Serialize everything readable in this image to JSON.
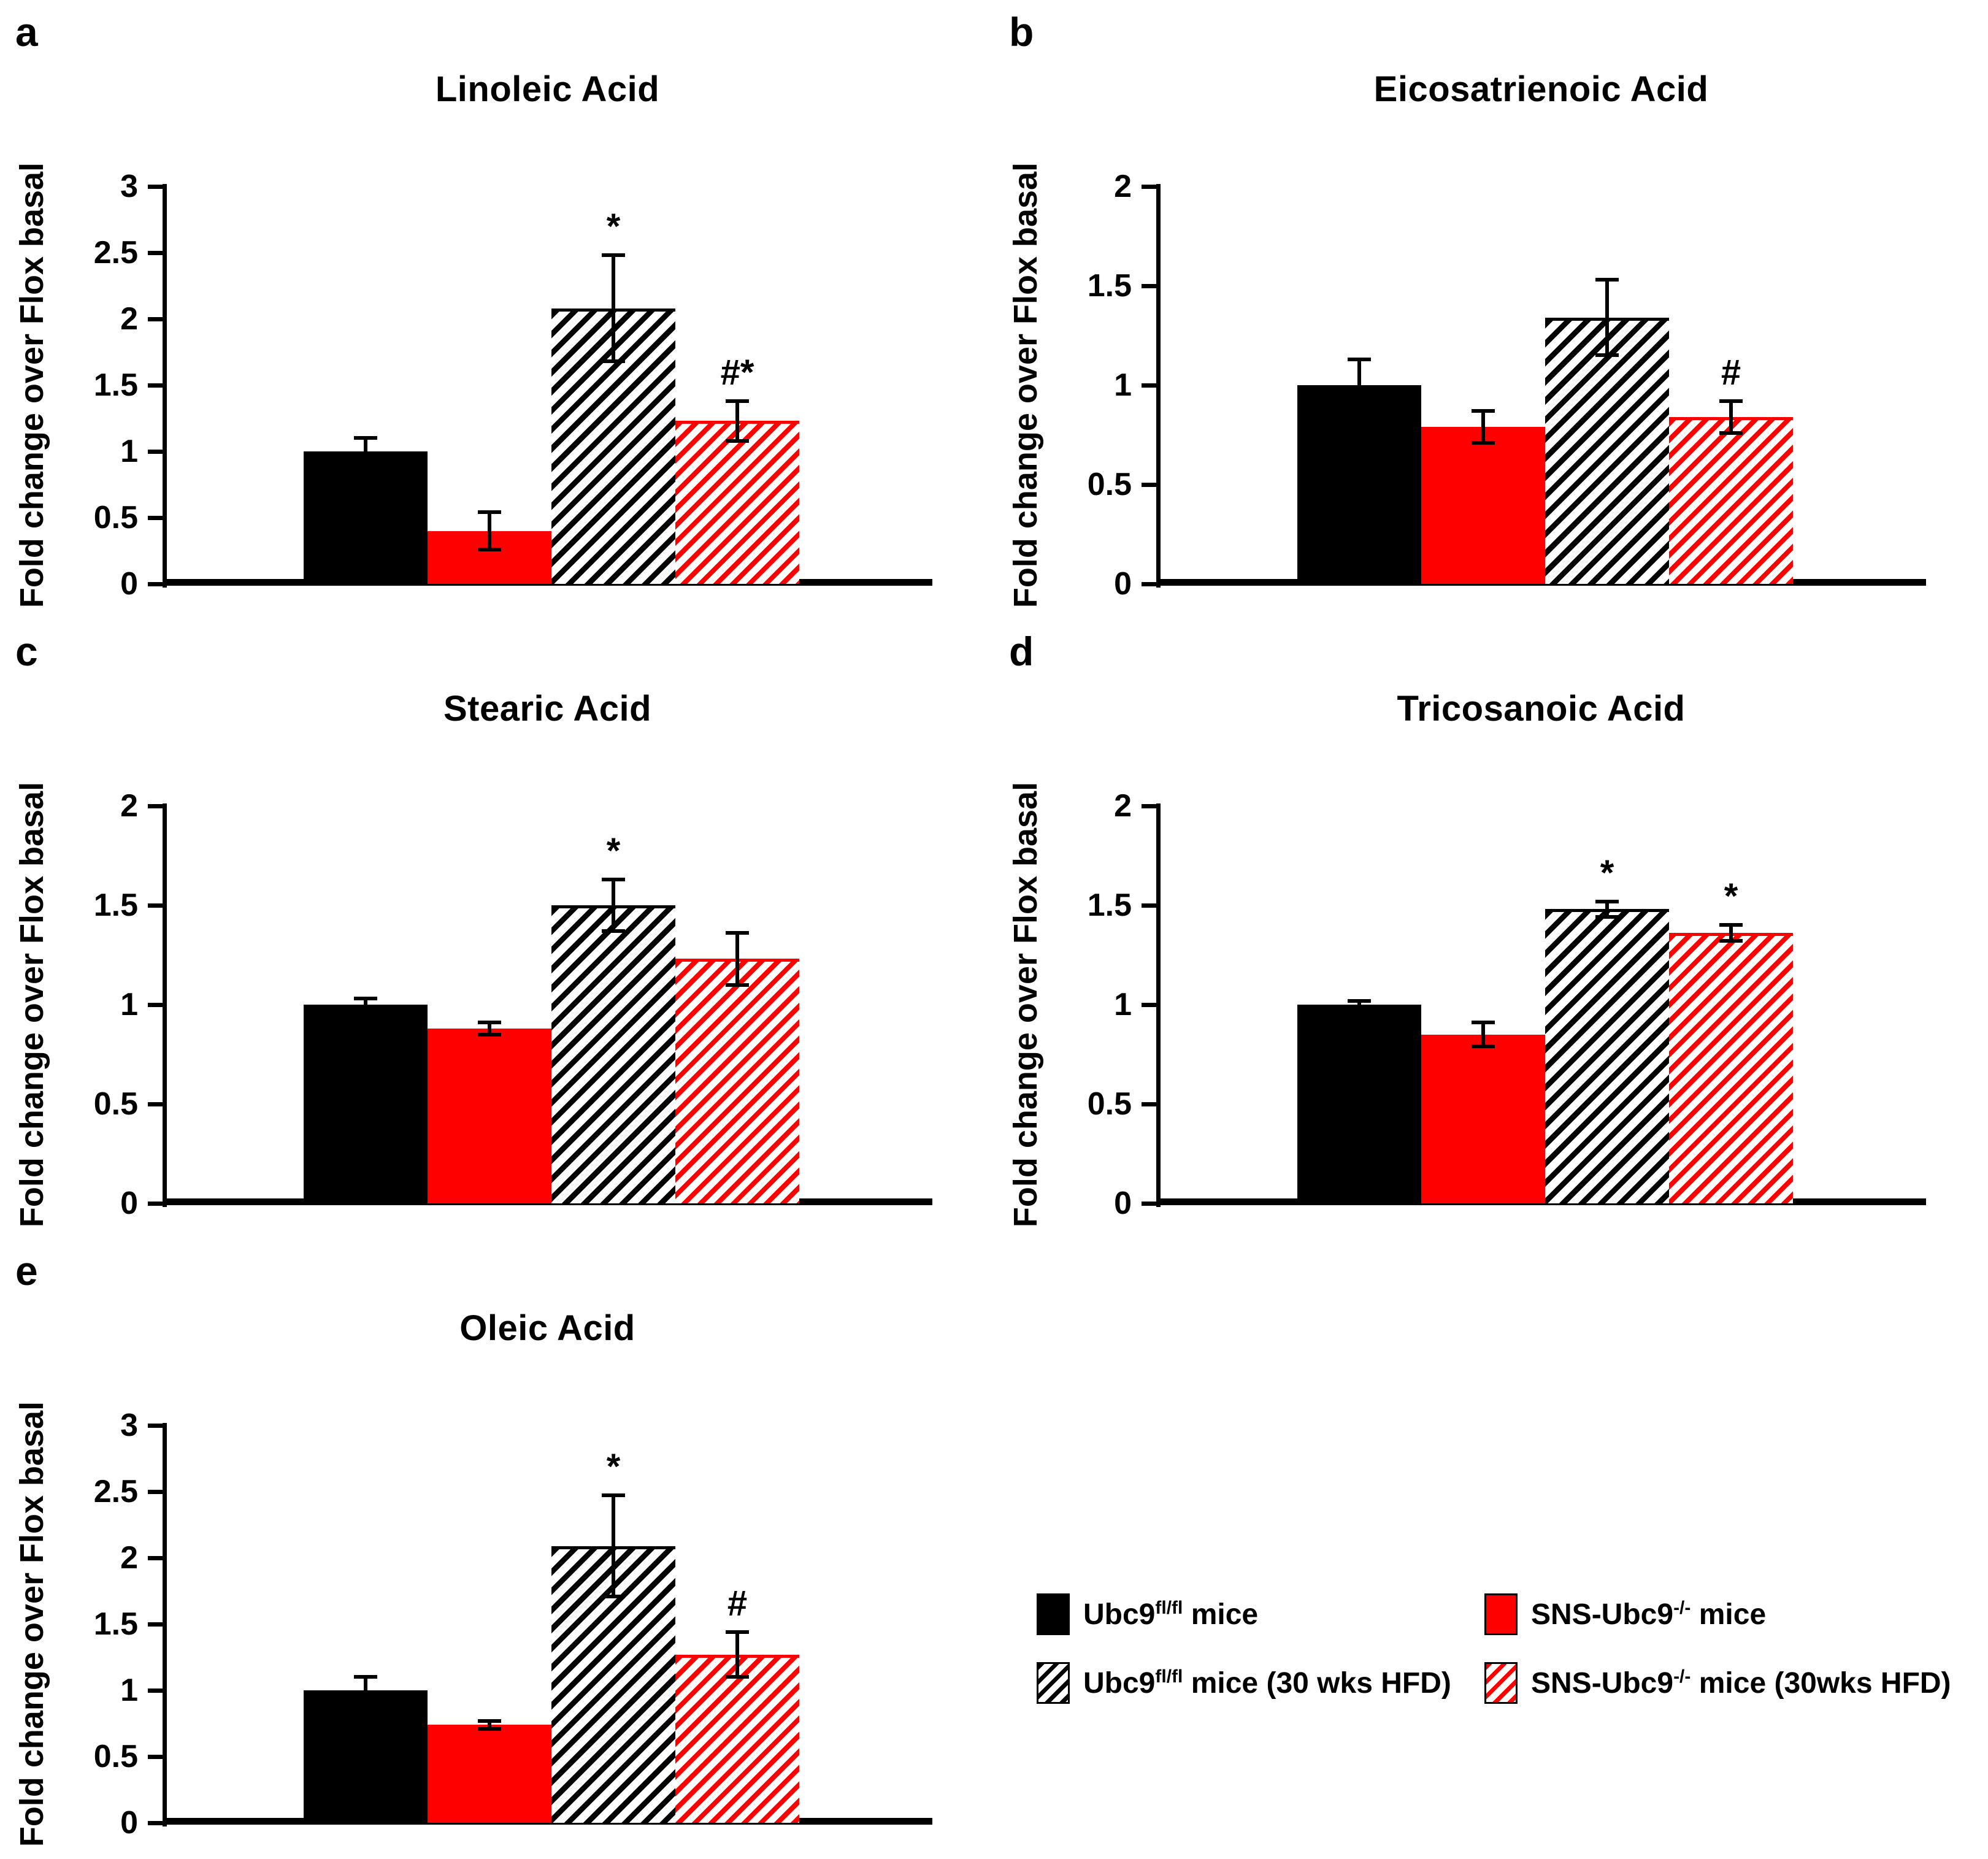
{
  "chart_data": [
    {
      "type": "bar",
      "panel": "a",
      "title": "Linoleic Acid",
      "ylabel": "Fold change over Flox basal",
      "xlabel": "",
      "ylim": [
        0,
        3
      ],
      "ytick_step": 0.5,
      "grid": false,
      "categories": [
        "Ubc9fl/fl mice",
        "SNS-Ubc9-/- mice",
        "Ubc9fl/fl mice (30 wks HFD)",
        "SNS-Ubc9-/- mice (30wks HFD)"
      ],
      "values": [
        1.0,
        0.4,
        2.08,
        1.23
      ],
      "errors": [
        0.1,
        0.14,
        0.4,
        0.15
      ],
      "significance": [
        "",
        "",
        "*",
        "#*"
      ]
    },
    {
      "type": "bar",
      "panel": "b",
      "title": "Eicosatrienoic Acid",
      "ylabel": "Fold change over Flox basal",
      "xlabel": "",
      "ylim": [
        0,
        2
      ],
      "ytick_step": 0.5,
      "grid": false,
      "categories": [
        "Ubc9fl/fl mice",
        "SNS-Ubc9-/- mice",
        "Ubc9fl/fl mice (30 wks HFD)",
        "SNS-Ubc9-/- mice (30wks HFD)"
      ],
      "values": [
        1.0,
        0.79,
        1.34,
        0.84
      ],
      "errors": [
        0.13,
        0.08,
        0.19,
        0.08
      ],
      "significance": [
        "",
        "",
        "",
        "#"
      ]
    },
    {
      "type": "bar",
      "panel": "c",
      "title": "Stearic Acid",
      "ylabel": "Fold change over Flox basal",
      "xlabel": "",
      "ylim": [
        0,
        2
      ],
      "ytick_step": 0.5,
      "grid": false,
      "categories": [
        "Ubc9fl/fl mice",
        "SNS-Ubc9-/- mice",
        "Ubc9fl/fl mice (30 wks HFD)",
        "SNS-Ubc9-/- mice (30wks HFD)"
      ],
      "values": [
        1.0,
        0.88,
        1.5,
        1.23
      ],
      "errors": [
        0.03,
        0.03,
        0.13,
        0.13
      ],
      "significance": [
        "",
        "",
        "*",
        ""
      ]
    },
    {
      "type": "bar",
      "panel": "d",
      "title": "Tricosanoic Acid",
      "ylabel": "Fold change over Flox basal",
      "xlabel": "",
      "ylim": [
        0,
        2
      ],
      "ytick_step": 0.5,
      "grid": false,
      "categories": [
        "Ubc9fl/fl mice",
        "SNS-Ubc9-/- mice",
        "Ubc9fl/fl mice (30 wks HFD)",
        "SNS-Ubc9-/- mice (30wks HFD)"
      ],
      "values": [
        1.0,
        0.85,
        1.48,
        1.36
      ],
      "errors": [
        0.02,
        0.06,
        0.04,
        0.04
      ],
      "significance": [
        "",
        "",
        "*",
        "*"
      ]
    },
    {
      "type": "bar",
      "panel": "e",
      "title": "Oleic Acid",
      "ylabel": "Fold change over Flox basal",
      "xlabel": "",
      "ylim": [
        0,
        3
      ],
      "ytick_step": 0.5,
      "grid": false,
      "categories": [
        "Ubc9fl/fl mice",
        "SNS-Ubc9-/- mice",
        "Ubc9fl/fl mice (30 wks HFD)",
        "SNS-Ubc9-/- mice (30wks HFD)"
      ],
      "values": [
        1.0,
        0.74,
        2.09,
        1.27
      ],
      "errors": [
        0.1,
        0.03,
        0.38,
        0.17
      ],
      "significance": [
        "",
        "",
        "*",
        "#"
      ]
    }
  ],
  "bar_styles": [
    "black-solid",
    "red-solid",
    "black-hatch",
    "red-hatch"
  ],
  "colors": {
    "bar_black": "#000000",
    "bar_red": "#FF0000",
    "axis": "#000000",
    "background": "#FFFFFF"
  },
  "legend": {
    "position": "bottom-right",
    "items": [
      {
        "swatch": "black-solid",
        "pre": "Ubc9",
        "sup": "fl/fl",
        "post": " mice"
      },
      {
        "swatch": "red-solid",
        "pre": "SNS-Ubc9",
        "sup": "-/-",
        "post": " mice"
      },
      {
        "swatch": "black-hatch",
        "pre": "Ubc9",
        "sup": "fl/fl",
        "post": " mice (30 wks HFD)"
      },
      {
        "swatch": "red-hatch",
        "pre": "SNS-Ubc9",
        "sup": "-/-",
        "post": " mice (30wks HFD)"
      }
    ]
  }
}
